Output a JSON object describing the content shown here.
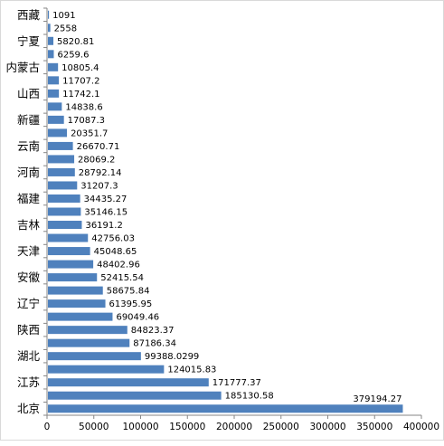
{
  "chart_data": {
    "type": "bar",
    "orientation": "horizontal",
    "categories": [
      "西藏",
      "",
      "宁夏",
      "",
      "内蒙古",
      "",
      "山西",
      "",
      "新疆",
      "",
      "云南",
      "",
      "河南",
      "",
      "福建",
      "",
      "吉林",
      "",
      "天津",
      "",
      "安徽",
      "",
      "辽宁",
      "",
      "陕西",
      "",
      "湖北",
      "",
      "江苏",
      "",
      "北京"
    ],
    "values": [
      1091,
      2558,
      5820.81,
      6259.6,
      10805.4,
      11707.2,
      11742.1,
      14838.6,
      17087.3,
      20351.7,
      26670.71,
      28069.2,
      28792.14,
      31207.3,
      34435.27,
      35146.15,
      36191.2,
      42756.03,
      45048.65,
      48402.96,
      52415.54,
      58675.84,
      61395.95,
      69049.46,
      84823.37,
      87186.34,
      99388.0299,
      124015.83,
      171777.37,
      185130.58,
      379194.27
    ],
    "value_labels": [
      "1091",
      "2558",
      "5820.81",
      "6259.6",
      "10805.4",
      "11707.2",
      "11742.1",
      "14838.6",
      "17087.3",
      "20351.7",
      "26670.71",
      "28069.2",
      "28792.14",
      "31207.3",
      "34435.27",
      "35146.15",
      "36191.2",
      "42756.03",
      "45048.65",
      "48402.96",
      "52415.54",
      "58675.84",
      "61395.95",
      "69049.46",
      "84823.37",
      "87186.34",
      "99388.0299",
      "124015.83",
      "171777.37",
      "185130.58",
      "379194.27"
    ],
    "xlim": [
      0,
      400000
    ],
    "xticks": [
      "0",
      "50000",
      "100000",
      "150000",
      "200000",
      "250000",
      "300000",
      "350000",
      "400000"
    ],
    "title": "",
    "xlabel": "",
    "ylabel": "",
    "grid": false,
    "legend": "none",
    "bar_color": "#4f81bd",
    "axis_color": "#868686"
  }
}
